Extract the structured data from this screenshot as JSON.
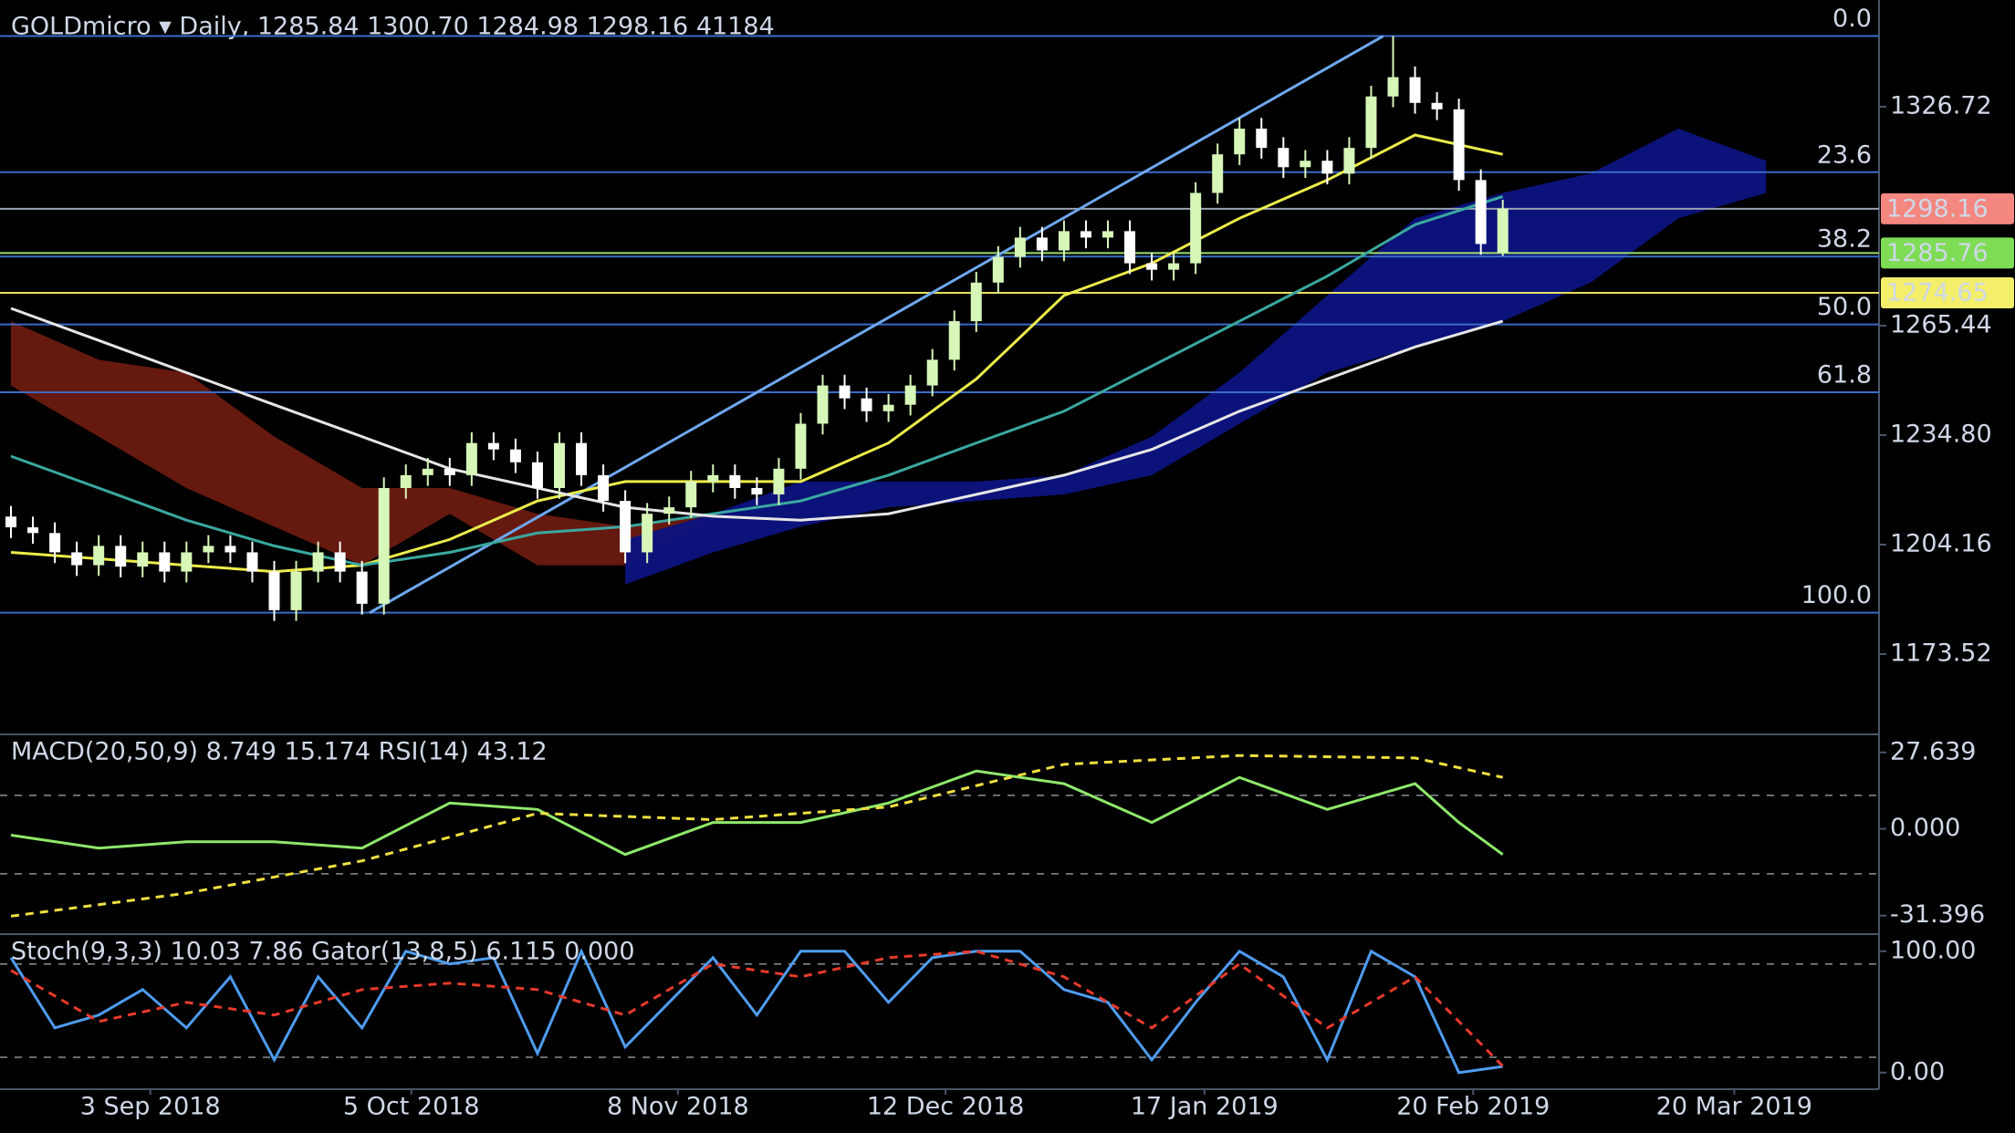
{
  "chart_data": [
    {
      "type": "candlestick",
      "title": "GOLDmicro ▾ Daily, 1285.84 1300.70 1284.98 1298.16 41184",
      "x": [
        0,
        2,
        4,
        6,
        8,
        10,
        12,
        14,
        16,
        18,
        20,
        22,
        24,
        26,
        28,
        30,
        32,
        34,
        36,
        38,
        40,
        42,
        44,
        46,
        48,
        50,
        52,
        54,
        56,
        58,
        60,
        62,
        64,
        66,
        68,
        70,
        72,
        74,
        76,
        78,
        80,
        82,
        84,
        86,
        88,
        90,
        92,
        94,
        96,
        98,
        100,
        102,
        104,
        106,
        108,
        110,
        112,
        114,
        116,
        118,
        120,
        122,
        124,
        126,
        128,
        130,
        132,
        134,
        136
      ],
      "open": [
        1212,
        1209,
        1207.4,
        1202,
        1198.4,
        1203.8,
        1198,
        1202,
        1196.6,
        1202,
        1203.8,
        1202,
        1196.6,
        1185.8,
        1196.6,
        1202,
        1196.6,
        1187.6,
        1220,
        1223.6,
        1225.4,
        1223.6,
        1232.6,
        1230.8,
        1227.2,
        1220,
        1232.6,
        1223.6,
        1216.4,
        1202,
        1212.8,
        1214.6,
        1221.8,
        1223.6,
        1220,
        1218.2,
        1225.4,
        1238,
        1248.7,
        1245.1,
        1241.5,
        1243.3,
        1248.7,
        1255.9,
        1266.7,
        1277.5,
        1284.7,
        1290.1,
        1286.5,
        1291.9,
        1290.1,
        1291.9,
        1282.9,
        1281.1,
        1282.9,
        1302.6,
        1313.4,
        1320.6,
        1315.2,
        1309.8,
        1311.6,
        1308,
        1315.2,
        1329.6,
        1335,
        1327.8,
        1326,
        1306.2,
        1285.84
      ],
      "high": [
        1215,
        1212,
        1210.4,
        1205,
        1206.8,
        1206.8,
        1205,
        1205,
        1205,
        1206.8,
        1206.8,
        1205,
        1199.6,
        1199.6,
        1205,
        1205,
        1199.6,
        1223,
        1226.6,
        1228.4,
        1228.4,
        1235.6,
        1235.6,
        1233.8,
        1230.2,
        1235.6,
        1235.6,
        1226.6,
        1219.4,
        1215.8,
        1217.6,
        1224.8,
        1226.6,
        1226.6,
        1223,
        1228.4,
        1241,
        1251.7,
        1251.7,
        1248.1,
        1246.3,
        1251.7,
        1258.9,
        1269.7,
        1280.5,
        1287.7,
        1293.1,
        1293.1,
        1294.9,
        1294.9,
        1294.9,
        1294.9,
        1285.9,
        1285.9,
        1305.6,
        1316.4,
        1323.6,
        1323.6,
        1318.2,
        1314.6,
        1314.6,
        1318.2,
        1332.6,
        1346.5,
        1338,
        1330.8,
        1329,
        1309.2,
        1300.7
      ],
      "low": [
        1206,
        1204.4,
        1199,
        1195.4,
        1195.4,
        1195,
        1195,
        1193.6,
        1193.6,
        1199,
        1199,
        1193.6,
        1182.8,
        1182.8,
        1193.6,
        1193.6,
        1184.6,
        1184.6,
        1217,
        1220.6,
        1220.6,
        1220.6,
        1227.8,
        1224.2,
        1217,
        1217,
        1220.6,
        1213.4,
        1199,
        1199,
        1209.8,
        1211.6,
        1218.8,
        1217,
        1215.2,
        1215.2,
        1222.4,
        1235,
        1242.1,
        1238.5,
        1238.5,
        1240.3,
        1245.7,
        1252.9,
        1263.7,
        1274.5,
        1281.7,
        1283.5,
        1283.5,
        1287.1,
        1287.1,
        1279.9,
        1278.1,
        1278.1,
        1279.9,
        1299.6,
        1310.4,
        1312.2,
        1306.8,
        1306.8,
        1305,
        1305,
        1312.2,
        1326.6,
        1324.8,
        1323,
        1303.2,
        1285.3,
        1284.98
      ],
      "close": [
        1209,
        1207.4,
        1202,
        1198.4,
        1203.8,
        1198,
        1202,
        1196.6,
        1202,
        1203.8,
        1202,
        1196.6,
        1185.8,
        1196.6,
        1202,
        1196.6,
        1187.6,
        1220,
        1223.6,
        1225.4,
        1223.6,
        1232.6,
        1230.8,
        1227.2,
        1220,
        1232.6,
        1223.6,
        1216.4,
        1202,
        1212.8,
        1214.6,
        1221.8,
        1223.6,
        1220,
        1218.2,
        1225.4,
        1238,
        1248.7,
        1245.1,
        1241.5,
        1243.3,
        1248.7,
        1255.9,
        1266.7,
        1277.5,
        1284.7,
        1290.1,
        1286.5,
        1291.9,
        1290.1,
        1291.9,
        1282.9,
        1281.1,
        1282.9,
        1302.6,
        1313.4,
        1320.6,
        1315.2,
        1309.8,
        1311.6,
        1308,
        1315.2,
        1329.6,
        1335,
        1327.8,
        1326,
        1306.2,
        1288.3,
        1298.16
      ],
      "up_color": "#d6f7b8",
      "down_color": "#ffffff",
      "xlim": [
        -1,
        170.3
      ],
      "ylim": [
        1151.05,
        1356.6
      ],
      "yticks": [
        1173.52,
        1204.16,
        {
          "value": 1234.8,
          "label": "1234.80"
        },
        1265.44,
        1326.72
      ],
      "clouds": [
        {
          "color": "#6b1a10",
          "x": [
            0,
            8,
            16,
            24,
            32,
            40,
            48,
            56,
            64
          ],
          "upper": [
            1266.7,
            1255.9,
            1252.3,
            1234.4,
            1220.0,
            1220.0,
            1212.8,
            1209.2,
            1212.8
          ],
          "lower": [
            1248.7,
            1234.4,
            1220.0,
            1209.2,
            1198.4,
            1212.8,
            1198.4,
            1198.4,
            1211.0
          ]
        },
        {
          "color": "#0c1380",
          "x": [
            56,
            64,
            72,
            80,
            88,
            96,
            104,
            112,
            120,
            128,
            136,
            144,
            152,
            160
          ],
          "upper": [
            1205.6,
            1212.8,
            1221.8,
            1221.8,
            1221.8,
            1223.6,
            1234.4,
            1252.3,
            1273.9,
            1295.5,
            1302.6,
            1308.0,
            1320.6,
            1311.6
          ],
          "lower": [
            1193.0,
            1202.0,
            1209.2,
            1214.6,
            1216.4,
            1218.2,
            1223.6,
            1238.0,
            1252.3,
            1259.5,
            1266.7,
            1277.5,
            1295.5,
            1302.6
          ]
        }
      ],
      "lines": [
        {
          "color": "#ecec4a",
          "x": [
            0,
            8,
            16,
            24,
            32,
            40,
            48,
            56,
            64,
            72,
            80,
            88,
            96,
            104,
            112,
            120,
            128,
            136
          ],
          "values": [
            1202.0,
            1200.2,
            1198.4,
            1196.6,
            1198.4,
            1205.6,
            1216.4,
            1221.8,
            1221.8,
            1221.8,
            1232.6,
            1250.5,
            1273.9,
            1282.9,
            1295.5,
            1306.2,
            1318.8,
            1313.4
          ]
        },
        {
          "color": "#3aa8a0",
          "x": [
            0,
            8,
            16,
            24,
            32,
            40,
            48,
            56,
            64,
            72,
            80,
            88,
            96,
            104,
            112,
            120,
            128,
            136
          ],
          "values": [
            1228.9,
            1220.0,
            1211.0,
            1203.8,
            1198.4,
            1202.0,
            1207.4,
            1209.2,
            1212.8,
            1216.4,
            1223.6,
            1232.6,
            1241.5,
            1254.1,
            1266.7,
            1279.3,
            1293.7,
            1301.6
          ]
        },
        {
          "color": "#e6e6e6",
          "x": [
            0,
            8,
            16,
            24,
            32,
            40,
            48,
            56,
            64,
            72,
            80,
            88,
            96,
            104,
            112,
            120,
            128,
            136
          ],
          "values": [
            1270.3,
            1261.3,
            1252.3,
            1243.3,
            1234.4,
            1225.4,
            1220.0,
            1214.6,
            1212.1,
            1211.0,
            1212.8,
            1218.2,
            1223.6,
            1230.8,
            1241.5,
            1250.5,
            1259.5,
            1266.7
          ]
        }
      ],
      "trendline": {
        "color": "#6fa8f0",
        "x": [
          32.7,
          125.1
        ],
        "y": [
          1185.1,
          1346.5
        ]
      },
      "fib": {
        "color": "#3a6bc8",
        "label_color": "#4f8fe0",
        "levels": [
          {
            "level": "0.0",
            "price": 1346.5
          },
          {
            "level": "23.6",
            "price": 1308.4
          },
          {
            "level": "38.2",
            "price": 1284.8
          },
          {
            "level": "50.0",
            "price": 1265.8
          },
          {
            "level": "61.8",
            "price": 1246.8
          },
          {
            "level": "100.0",
            "price": 1185.1
          }
        ]
      },
      "price_tags": [
        {
          "value": 1298.16,
          "color": "#f4877f",
          "line_color": "#9aa3b0"
        },
        {
          "value": 1285.76,
          "color": "#7edc55",
          "line_color": "#9be070"
        },
        {
          "value": 1274.65,
          "color": "#f3ef6a",
          "line_color": "#e8e060"
        }
      ]
    },
    {
      "type": "line",
      "title": "MACD(20,50,9) 8.749 15.174 RSI(14) 43.12",
      "xlim": [
        -1,
        170.3
      ],
      "ylim": [
        -38.1,
        33.5
      ],
      "yticks": [
        27.639,
        {
          "value": 0,
          "label": "0.000"
        },
        -31.396
      ],
      "levels": [
        12.1,
        -16.3
      ],
      "series": [
        {
          "color": "#8ee86a",
          "dashed": false,
          "x": [
            0,
            8,
            16,
            24,
            32,
            40,
            48,
            56,
            64,
            72,
            80,
            88,
            96,
            104,
            112,
            120,
            128,
            132,
            136
          ],
          "values": [
            -2.3,
            -7.0,
            -4.7,
            -4.7,
            -7.0,
            9.3,
            7.0,
            -9.3,
            2.3,
            2.3,
            9.3,
            20.9,
            16.3,
            2.3,
            18.6,
            7.0,
            16.3,
            2.3,
            -9.3
          ]
        },
        {
          "color": "#f0e040",
          "dashed": true,
          "x": [
            0,
            16,
            32,
            48,
            64,
            80,
            96,
            112,
            128,
            136
          ],
          "values": [
            -31.6,
            -23.3,
            -11.6,
            5.6,
            3.3,
            7.9,
            23.3,
            26.5,
            25.6,
            18.6
          ]
        }
      ]
    },
    {
      "type": "line",
      "title": "Stoch(9,3,3) 10.03 7.86 Gator(13,8,5) 6.115 0.000",
      "xlim": [
        -1,
        170.3
      ],
      "ylim": [
        -13.7,
        112.6
      ],
      "yticks": [
        {
          "value": 100,
          "label": "100.00"
        },
        {
          "value": 0,
          "label": "0.00"
        }
      ],
      "levels": [
        89.5,
        12.6
      ],
      "xticks": [
        {
          "value": 12.7,
          "label": "3 Sep 2018"
        },
        {
          "value": 36.5,
          "label": "5 Oct 2018"
        },
        {
          "value": 60.8,
          "label": "8 Nov 2018"
        },
        {
          "value": 85.2,
          "label": "12 Dec 2018"
        },
        {
          "value": 108.8,
          "label": "17 Jan 2019"
        },
        {
          "value": 133.3,
          "label": "20 Feb 2019"
        },
        {
          "value": 157.1,
          "label": "20 Mar 2019"
        }
      ],
      "series": [
        {
          "color": "#4f9cf0",
          "dashed": false,
          "x": [
            0,
            4,
            8,
            12,
            16,
            20,
            24,
            28,
            32,
            36,
            40,
            44,
            48,
            52,
            56,
            60,
            64,
            68,
            72,
            76,
            80,
            84,
            88,
            92,
            96,
            100,
            104,
            108,
            112,
            116,
            120,
            124,
            128,
            132,
            136
          ],
          "values": [
            94.7,
            36.8,
            47.4,
            68.4,
            36.8,
            78.9,
            10.5,
            78.9,
            36.8,
            100,
            89.5,
            94.7,
            15.8,
            100,
            21.1,
            57.9,
            94.7,
            47.4,
            100,
            100,
            57.9,
            94.7,
            100,
            100,
            68.4,
            57.9,
            10.5,
            57.9,
            100,
            78.9,
            10.5,
            100,
            78.9,
            0,
            5
          ]
        },
        {
          "color": "#e83a2a",
          "dashed": true,
          "x": [
            0,
            8,
            16,
            24,
            32,
            40,
            48,
            56,
            64,
            72,
            80,
            88,
            96,
            104,
            112,
            120,
            128,
            136
          ],
          "values": [
            84.2,
            42.1,
            57.9,
            47.4,
            68.4,
            73.7,
            68.4,
            47.4,
            89.5,
            78.9,
            94.7,
            100,
            78.9,
            36.8,
            89.5,
            36.8,
            78.9,
            5.3
          ]
        }
      ]
    }
  ]
}
